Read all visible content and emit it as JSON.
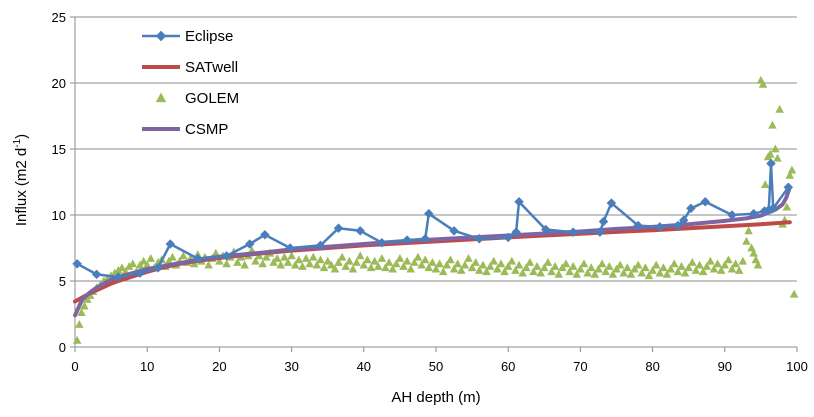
{
  "chart_data": {
    "type": "line",
    "title": "",
    "xlabel": "AH depth (m)",
    "ylabel_main": "Influx (m2 d",
    "ylabel_sup": "-1",
    "ylabel_close": ")",
    "xlim": [
      0,
      100
    ],
    "ylim": [
      0,
      25
    ],
    "x_ticks": [
      0,
      10,
      20,
      30,
      40,
      50,
      60,
      70,
      80,
      90,
      100
    ],
    "y_ticks": [
      0,
      5,
      10,
      15,
      20,
      25
    ],
    "grid": "horizontal",
    "legend_position": "top-left",
    "series": [
      {
        "name": "Eclipse",
        "color": "#4a7ebb",
        "marker": "diamond",
        "line": true,
        "points": [
          [
            0.3,
            6.3
          ],
          [
            3,
            5.5
          ],
          [
            6,
            5.3
          ],
          [
            9,
            5.6
          ],
          [
            11.5,
            6
          ],
          [
            13.2,
            7.8
          ],
          [
            17,
            6.7
          ],
          [
            21,
            6.9
          ],
          [
            24.2,
            7.8
          ],
          [
            26.3,
            8.5
          ],
          [
            29.8,
            7.5
          ],
          [
            34,
            7.7
          ],
          [
            36.5,
            9
          ],
          [
            39.5,
            8.8
          ],
          [
            42.5,
            7.9
          ],
          [
            46,
            8.1
          ],
          [
            48.5,
            8.2
          ],
          [
            49,
            10.1
          ],
          [
            52.5,
            8.8
          ],
          [
            56,
            8.2
          ],
          [
            60,
            8.3
          ],
          [
            61.1,
            8.7
          ],
          [
            61.5,
            11
          ],
          [
            65.2,
            8.9
          ],
          [
            69,
            8.7
          ],
          [
            72.7,
            8.7
          ],
          [
            73.2,
            9.5
          ],
          [
            74.3,
            10.9
          ],
          [
            78,
            9.2
          ],
          [
            81,
            9.1
          ],
          [
            83.5,
            9.2
          ],
          [
            84.3,
            9.6
          ],
          [
            85.3,
            10.5
          ],
          [
            87.3,
            11
          ],
          [
            91,
            10
          ],
          [
            94,
            10.1
          ],
          [
            95.5,
            10.3
          ],
          [
            96.1,
            10.4
          ],
          [
            96.4,
            13.9
          ],
          [
            96.7,
            10.5
          ],
          [
            98.8,
            12.1
          ]
        ]
      },
      {
        "name": "SATwell",
        "color": "#be4b48",
        "marker": "none",
        "line": true,
        "points": [
          [
            0,
            3.45
          ],
          [
            1,
            3.75
          ],
          [
            2,
            4.05
          ],
          [
            3,
            4.3
          ],
          [
            4,
            4.55
          ],
          [
            5,
            4.8
          ],
          [
            6,
            5.0
          ],
          [
            8,
            5.35
          ],
          [
            10,
            5.7
          ],
          [
            12,
            6.0
          ],
          [
            15,
            6.35
          ],
          [
            18,
            6.6
          ],
          [
            20,
            6.75
          ],
          [
            25,
            7.05
          ],
          [
            30,
            7.3
          ],
          [
            35,
            7.5
          ],
          [
            40,
            7.7
          ],
          [
            45,
            7.85
          ],
          [
            50,
            8.0
          ],
          [
            55,
            8.15
          ],
          [
            60,
            8.3
          ],
          [
            65,
            8.45
          ],
          [
            70,
            8.58
          ],
          [
            75,
            8.72
          ],
          [
            80,
            8.85
          ],
          [
            85,
            9.0
          ],
          [
            90,
            9.15
          ],
          [
            95,
            9.3
          ],
          [
            99,
            9.45
          ]
        ]
      },
      {
        "name": "GOLEM",
        "color": "#9bbb59",
        "marker": "triangle",
        "line": false,
        "points": [
          [
            0.3,
            0.5
          ],
          [
            0.6,
            1.7
          ],
          [
            0.9,
            2.6
          ],
          [
            1.3,
            3.1
          ],
          [
            1.7,
            3.6
          ],
          [
            2.1,
            3.9
          ],
          [
            2.5,
            4.2
          ],
          [
            3,
            4.5
          ],
          [
            3.5,
            4.7
          ],
          [
            4,
            5
          ],
          [
            4.5,
            5.2
          ],
          [
            5,
            5.4
          ],
          [
            5.5,
            5.6
          ],
          [
            6,
            5.8
          ],
          [
            6.5,
            6.0
          ],
          [
            7,
            5.7
          ],
          [
            7.5,
            6.1
          ],
          [
            8,
            6.3
          ],
          [
            8.5,
            5.7
          ],
          [
            9,
            6.2
          ],
          [
            9.5,
            6.5
          ],
          [
            10,
            6.2
          ],
          [
            10.5,
            6.7
          ],
          [
            11,
            6
          ],
          [
            11.5,
            6.4
          ],
          [
            12,
            6.6
          ],
          [
            12.5,
            6.1
          ],
          [
            13,
            6.5
          ],
          [
            13.5,
            6.8
          ],
          [
            14,
            6.2
          ],
          [
            14.5,
            6.5
          ],
          [
            15,
            6.9
          ],
          [
            15.5,
            6.4
          ],
          [
            16,
            6.7
          ],
          [
            16.5,
            6.3
          ],
          [
            17,
            7
          ],
          [
            17.5,
            6.5
          ],
          [
            18,
            6.8
          ],
          [
            18.5,
            6.2
          ],
          [
            19,
            6.7
          ],
          [
            19.5,
            7.1
          ],
          [
            20,
            6.5
          ],
          [
            20.5,
            6.9
          ],
          [
            21,
            6.3
          ],
          [
            21.5,
            6.8
          ],
          [
            22,
            7.2
          ],
          [
            22.5,
            6.4
          ],
          [
            23,
            6.8
          ],
          [
            23.5,
            6.2
          ],
          [
            24,
            6.9
          ],
          [
            24.5,
            7.3
          ],
          [
            25,
            6.5
          ],
          [
            25.5,
            6.9
          ],
          [
            26,
            6.3
          ],
          [
            26.5,
            6.8
          ],
          [
            27,
            7.1
          ],
          [
            27.5,
            6.4
          ],
          [
            28,
            6.7
          ],
          [
            28.5,
            6.2
          ],
          [
            29,
            6.8
          ],
          [
            29.5,
            6.4
          ],
          [
            30,
            6.9
          ],
          [
            30.5,
            6.2
          ],
          [
            31,
            6.6
          ],
          [
            31.5,
            6.1
          ],
          [
            32,
            6.7
          ],
          [
            32.5,
            6.3
          ],
          [
            33,
            6.8
          ],
          [
            33.5,
            6.2
          ],
          [
            34,
            6.6
          ],
          [
            34.5,
            6.0
          ],
          [
            35,
            6.5
          ],
          [
            35.5,
            6.2
          ],
          [
            36,
            5.9
          ],
          [
            36.5,
            6.4
          ],
          [
            37,
            6.8
          ],
          [
            37.5,
            6.1
          ],
          [
            38,
            6.5
          ],
          [
            38.5,
            5.9
          ],
          [
            39,
            6.4
          ],
          [
            39.5,
            6.9
          ],
          [
            40,
            6.2
          ],
          [
            40.5,
            6.6
          ],
          [
            41,
            6.0
          ],
          [
            41.5,
            6.5
          ],
          [
            42,
            6.1
          ],
          [
            42.5,
            6.7
          ],
          [
            43,
            6.0
          ],
          [
            43.5,
            6.4
          ],
          [
            44,
            5.9
          ],
          [
            44.5,
            6.3
          ],
          [
            45,
            6.7
          ],
          [
            45.5,
            6.1
          ],
          [
            46,
            6.5
          ],
          [
            46.5,
            5.9
          ],
          [
            47,
            6.4
          ],
          [
            47.5,
            6.8
          ],
          [
            48,
            6.2
          ],
          [
            48.5,
            6.6
          ],
          [
            49,
            6.0
          ],
          [
            49.5,
            6.4
          ],
          [
            50,
            5.9
          ],
          [
            50.5,
            6.3
          ],
          [
            51,
            5.7
          ],
          [
            51.5,
            6.2
          ],
          [
            52,
            6.6
          ],
          [
            52.5,
            5.9
          ],
          [
            53,
            6.3
          ],
          [
            53.5,
            5.8
          ],
          [
            54,
            6.2
          ],
          [
            54.5,
            6.7
          ],
          [
            55,
            6.0
          ],
          [
            55.5,
            6.4
          ],
          [
            56,
            5.8
          ],
          [
            56.5,
            6.2
          ],
          [
            57,
            5.7
          ],
          [
            57.5,
            6.1
          ],
          [
            58,
            6.5
          ],
          [
            58.5,
            5.9
          ],
          [
            59,
            6.3
          ],
          [
            59.5,
            5.7
          ],
          [
            60,
            6.1
          ],
          [
            60.5,
            6.5
          ],
          [
            61,
            5.8
          ],
          [
            61.5,
            6.2
          ],
          [
            62,
            5.6
          ],
          [
            62.5,
            6.0
          ],
          [
            63,
            6.4
          ],
          [
            63.5,
            5.7
          ],
          [
            64,
            6.1
          ],
          [
            64.5,
            5.6
          ],
          [
            65,
            6.0
          ],
          [
            65.5,
            6.4
          ],
          [
            66,
            5.7
          ],
          [
            66.5,
            6.1
          ],
          [
            67,
            5.5
          ],
          [
            67.5,
            6.0
          ],
          [
            68,
            6.3
          ],
          [
            68.5,
            5.7
          ],
          [
            69,
            6.1
          ],
          [
            69.5,
            5.5
          ],
          [
            70,
            5.9
          ],
          [
            70.5,
            6.3
          ],
          [
            71,
            5.6
          ],
          [
            71.5,
            6.0
          ],
          [
            72,
            5.5
          ],
          [
            72.5,
            5.9
          ],
          [
            73,
            6.3
          ],
          [
            73.5,
            5.7
          ],
          [
            74,
            6.1
          ],
          [
            74.5,
            5.5
          ],
          [
            75,
            5.9
          ],
          [
            75.5,
            6.2
          ],
          [
            76,
            5.6
          ],
          [
            76.5,
            6.0
          ],
          [
            77,
            5.5
          ],
          [
            77.5,
            5.9
          ],
          [
            78,
            6.2
          ],
          [
            78.5,
            5.6
          ],
          [
            79,
            6.0
          ],
          [
            79.5,
            5.4
          ],
          [
            80,
            5.8
          ],
          [
            80.5,
            6.2
          ],
          [
            81,
            5.6
          ],
          [
            81.5,
            6.0
          ],
          [
            82,
            5.5
          ],
          [
            82.5,
            5.9
          ],
          [
            83,
            6.3
          ],
          [
            83.5,
            5.7
          ],
          [
            84,
            6.1
          ],
          [
            84.5,
            5.6
          ],
          [
            85,
            6.0
          ],
          [
            85.5,
            6.4
          ],
          [
            86,
            5.8
          ],
          [
            86.5,
            6.2
          ],
          [
            87,
            5.7
          ],
          [
            87.5,
            6.1
          ],
          [
            88,
            6.5
          ],
          [
            88.5,
            5.9
          ],
          [
            89,
            6.3
          ],
          [
            89.5,
            5.8
          ],
          [
            90,
            6.2
          ],
          [
            90.5,
            6.6
          ],
          [
            91,
            5.9
          ],
          [
            91.5,
            6.3
          ],
          [
            92,
            5.8
          ],
          [
            92.5,
            6.5
          ],
          [
            93,
            8
          ],
          [
            93.3,
            8.8
          ],
          [
            93.7,
            7.5
          ],
          [
            94,
            7.1
          ],
          [
            94.3,
            6.6
          ],
          [
            94.6,
            6.2
          ],
          [
            95,
            20.2
          ],
          [
            95.3,
            19.9
          ],
          [
            95.6,
            12.3
          ],
          [
            96,
            14.4
          ],
          [
            96.3,
            14.6
          ],
          [
            96.6,
            16.8
          ],
          [
            97,
            15
          ],
          [
            97.3,
            14.3
          ],
          [
            97.6,
            18
          ],
          [
            98,
            9.3
          ],
          [
            98.3,
            9.6
          ],
          [
            98.6,
            10.6
          ],
          [
            99,
            13
          ],
          [
            99.3,
            13.4
          ],
          [
            99.6,
            4
          ]
        ]
      },
      {
        "name": "CSMP",
        "color": "#8064a2",
        "marker": "none",
        "line": true,
        "points": [
          [
            0,
            2.4
          ],
          [
            0.5,
            3.0
          ],
          [
            1,
            3.6
          ],
          [
            2,
            4.1
          ],
          [
            3,
            4.5
          ],
          [
            4,
            4.8
          ],
          [
            5,
            5.1
          ],
          [
            6,
            5.3
          ],
          [
            8,
            5.6
          ],
          [
            10,
            5.9
          ],
          [
            12,
            6.1
          ],
          [
            15,
            6.4
          ],
          [
            18,
            6.7
          ],
          [
            20,
            6.85
          ],
          [
            23,
            7.0
          ],
          [
            26,
            7.15
          ],
          [
            30,
            7.4
          ],
          [
            35,
            7.6
          ],
          [
            40,
            7.8
          ],
          [
            45,
            8.0
          ],
          [
            50,
            8.15
          ],
          [
            55,
            8.3
          ],
          [
            60,
            8.45
          ],
          [
            65,
            8.6
          ],
          [
            70,
            8.75
          ],
          [
            75,
            8.95
          ],
          [
            80,
            9.1
          ],
          [
            85,
            9.3
          ],
          [
            90,
            9.55
          ],
          [
            93,
            9.75
          ],
          [
            95,
            9.95
          ],
          [
            97,
            10.4
          ],
          [
            98,
            10.8
          ],
          [
            98.5,
            11.3
          ],
          [
            99,
            12.1
          ]
        ]
      }
    ]
  }
}
